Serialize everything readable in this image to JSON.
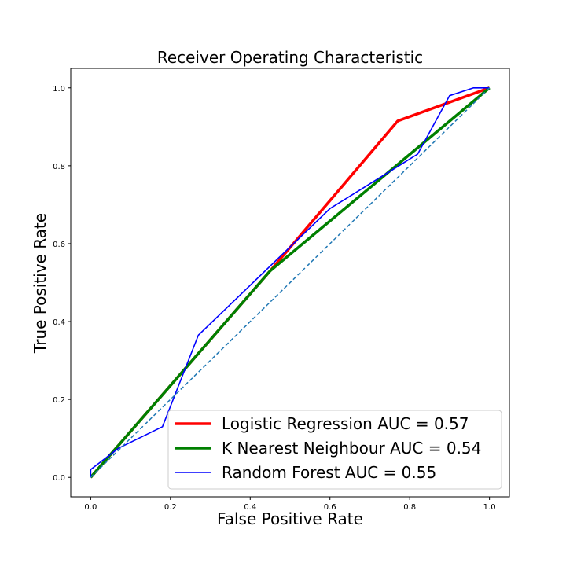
{
  "chart_data": {
    "type": "line",
    "title": "Receiver Operating Characteristic",
    "xlabel": "False Positive Rate",
    "ylabel": "True Positive Rate",
    "xlim": [
      -0.05,
      1.05
    ],
    "ylim": [
      -0.05,
      1.05
    ],
    "xticks": [
      "0.0",
      "0.2",
      "0.4",
      "0.6",
      "0.8",
      "1.0"
    ],
    "yticks": [
      "0.0",
      "0.2",
      "0.4",
      "0.6",
      "0.8",
      "1.0"
    ],
    "legend_position": "bottom-right",
    "grid": false,
    "series": [
      {
        "name": "Logistic Regression AUC = 0.57",
        "color": "#ff0000",
        "x": [
          0.0,
          0.45,
          0.77,
          1.0
        ],
        "y": [
          0.0,
          0.53,
          0.915,
          1.0
        ]
      },
      {
        "name": "K Nearest Neighbour AUC = 0.54",
        "color": "#008000",
        "x": [
          0.0,
          0.45,
          1.0
        ],
        "y": [
          0.0,
          0.53,
          1.0
        ]
      },
      {
        "name": "Random Forest AUC = 0.55",
        "color": "#0000ff",
        "x": [
          0.0,
          0.0,
          0.07,
          0.18,
          0.27,
          0.6,
          0.82,
          0.9,
          0.96,
          1.0
        ],
        "y": [
          0.0,
          0.02,
          0.075,
          0.13,
          0.365,
          0.69,
          0.83,
          0.98,
          1.0,
          1.0
        ]
      }
    ],
    "reference_line": {
      "color": "#1f77b4",
      "style": "dashed",
      "x": [
        0.0,
        1.0
      ],
      "y": [
        0.0,
        1.0
      ]
    }
  }
}
